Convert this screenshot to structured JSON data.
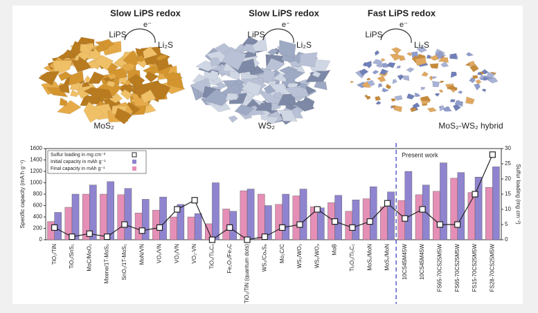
{
  "illustration": {
    "panels": [
      {
        "heading": "Slow LiPS redox",
        "reactant": "LiPS",
        "product": "Li₂S",
        "electron": "e⁻",
        "caption": "MoS₂"
      },
      {
        "heading": "Slow LiPS redox",
        "reactant": "LiPS",
        "product": "Li₂S",
        "electron": "e⁻",
        "caption": "WS₂"
      },
      {
        "heading": "Fast LiPS redox",
        "reactant": "LiPS",
        "product": "Li₂S",
        "electron": "e⁻",
        "caption": "MoS₂-WS₂ hybrid"
      }
    ]
  },
  "chart_data": {
    "type": "bar",
    "ylabel": "Specific capacity (mA h g⁻¹)",
    "y2label": "Sulfur loading (mg cm⁻²)",
    "annotation": "Present work",
    "categories": [
      "TiO₂/TiN",
      "TiO₂/SnS₂",
      "MoC/MoO₂",
      "Mxene/1T-MoS₂",
      "SnO₂/1T-MoS₂",
      "MoN/VN",
      "VO₂/VN",
      "VO₂/VN",
      "VO₂-VN",
      "TiO₂/Ti₃C₂",
      "Fe₂O₃/Fe₃C",
      "TiO₂/TiN (quantum dots)",
      "WS₂/Co₉S₈",
      "Mo₂C/C",
      "WS₂/WO₃",
      "WS₂/WO₃",
      "MoB",
      "Ti₃O₂/Ti₃C₂",
      "MoS₂/MoN",
      "MoS₂/MoN",
      "10CS45M45W",
      "10CS45M45W",
      "FS65-70CS25M5W",
      "FS65-70CS25M5W",
      "FS15-70CS25M5W",
      "FS28-70CS25M5W"
    ],
    "series": [
      {
        "name": "Final capacity in mAh g⁻¹",
        "color": "#e58fb6",
        "values": [
          320,
          570,
          800,
          800,
          790,
          470,
          520,
          400,
          400,
          280,
          540,
          860,
          800,
          620,
          770,
          580,
          650,
          500,
          720,
          580,
          690,
          790,
          850,
          1080,
          830,
          920
        ]
      },
      {
        "name": "Initial capacity in mAh g⁻¹",
        "color": "#8f84cf",
        "values": [
          480,
          800,
          960,
          1020,
          900,
          710,
          750,
          620,
          460,
          1000,
          500,
          890,
          600,
          800,
          890,
          560,
          780,
          700,
          930,
          840,
          1200,
          960,
          1350,
          1180,
          1100,
          1280
        ]
      },
      {
        "name": "Sulfur loading in mg cm⁻²",
        "color": "#222222",
        "axis": "y2",
        "values": [
          4,
          1,
          2,
          1,
          5,
          3,
          4,
          10,
          13,
          0,
          4,
          0,
          1,
          4,
          5,
          10,
          6,
          4,
          6,
          12,
          7,
          10,
          5,
          5,
          15,
          28
        ]
      }
    ],
    "present_start": 20,
    "ylim": [
      0,
      1600
    ],
    "yticks": [
      0,
      200,
      400,
      600,
      800,
      1000,
      1200,
      1400,
      1600
    ],
    "y2lim": [
      0,
      30
    ],
    "y2ticks": [
      0,
      5,
      10,
      15,
      20,
      25,
      30
    ],
    "legend": "upper left"
  }
}
